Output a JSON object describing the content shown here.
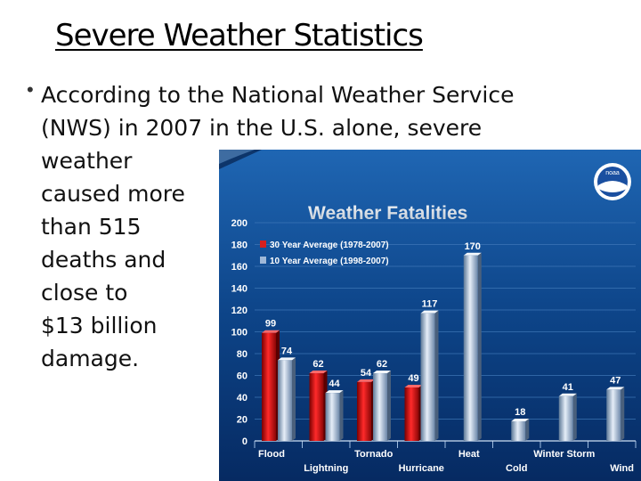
{
  "slide": {
    "title": "Severe Weather Statistics",
    "bullet_lines": [
      "According to the National Weather Service",
      "(NWS) in 2007 in the U.S. alone, severe",
      "weather",
      "caused more",
      "than 515",
      "deaths and",
      "close to",
      "$13 billion",
      "damage."
    ]
  },
  "chart_data": {
    "type": "bar",
    "title": "Weather Fatalities",
    "categories": [
      "Flood",
      "Lightning",
      "Tornado",
      "Hurricane",
      "Heat",
      "Cold",
      "Winter Storm",
      "Wind"
    ],
    "series": [
      {
        "name": "30 Year Average (1978-2007)",
        "color": "#d61f1f",
        "values": [
          99,
          62,
          54,
          49,
          null,
          null,
          null,
          null
        ]
      },
      {
        "name": "10 Year Average (1998-2007)",
        "color": "#9fb8d8",
        "values": [
          74,
          44,
          62,
          117,
          170,
          18,
          41,
          47
        ]
      }
    ],
    "y_ticks": [
      "0",
      "20",
      "40",
      "60",
      "80",
      "100",
      "120",
      "140",
      "160",
      "180",
      "200"
    ],
    "ylim": [
      0,
      200
    ],
    "legend_position": "top-left",
    "grid": true
  },
  "logo": {
    "text": "noaa",
    "icon": "noaa-logo-icon"
  },
  "colors": {
    "panel_top": "#1f66b3",
    "panel_bottom": "#062a62",
    "title_color": "#dfe6ee"
  }
}
